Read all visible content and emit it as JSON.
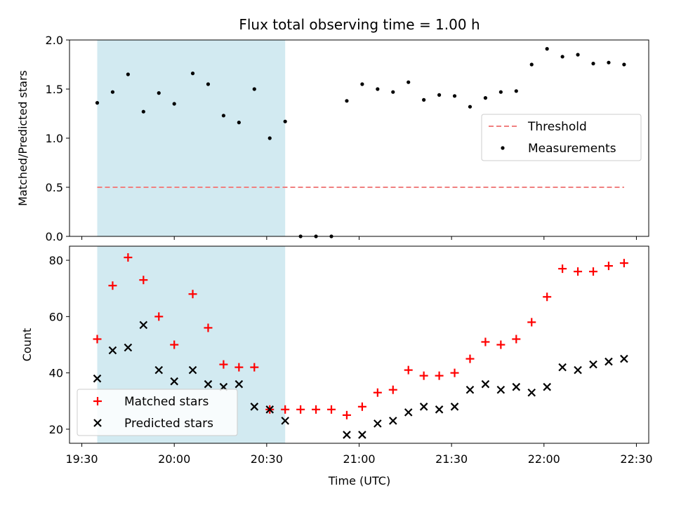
{
  "chart_data": [
    {
      "type": "scatter",
      "title": "Flux total observing time = 1.00 h",
      "xlabel": "",
      "ylabel": "Matched/Predicted stars",
      "ylim": [
        0,
        2.0
      ],
      "yticks": [
        "0.0",
        "0.5",
        "1.0",
        "1.5",
        "2.0"
      ],
      "shaded_span": [
        "19:35",
        "20:36"
      ],
      "threshold": {
        "name": "Threshold",
        "value": 0.5,
        "x_range": [
          "19:35",
          "22:26"
        ],
        "color": "#f08080"
      },
      "legend": {
        "placement": "center-right",
        "entries": [
          "Threshold",
          "Measurements"
        ]
      },
      "series": [
        {
          "name": "Measurements",
          "color": "#000000",
          "points": [
            [
              "19:35",
              1.36
            ],
            [
              "19:40",
              1.47
            ],
            [
              "19:45",
              1.65
            ],
            [
              "19:50",
              1.27
            ],
            [
              "19:55",
              1.46
            ],
            [
              "20:00",
              1.35
            ],
            [
              "20:06",
              1.66
            ],
            [
              "20:11",
              1.55
            ],
            [
              "20:16",
              1.23
            ],
            [
              "20:21",
              1.16
            ],
            [
              "20:26",
              1.5
            ],
            [
              "20:31",
              1.0
            ],
            [
              "20:36",
              1.17
            ],
            [
              "20:41",
              0.0
            ],
            [
              "20:46",
              0.0
            ],
            [
              "20:51",
              0.0
            ],
            [
              "20:56",
              1.38
            ],
            [
              "21:01",
              1.55
            ],
            [
              "21:06",
              1.5
            ],
            [
              "21:11",
              1.47
            ],
            [
              "21:16",
              1.57
            ],
            [
              "21:21",
              1.39
            ],
            [
              "21:26",
              1.44
            ],
            [
              "21:31",
              1.43
            ],
            [
              "21:36",
              1.32
            ],
            [
              "21:41",
              1.41
            ],
            [
              "21:46",
              1.47
            ],
            [
              "21:51",
              1.48
            ],
            [
              "21:56",
              1.75
            ],
            [
              "22:01",
              1.91
            ],
            [
              "22:06",
              1.83
            ],
            [
              "22:11",
              1.85
            ],
            [
              "22:16",
              1.76
            ],
            [
              "22:21",
              1.77
            ],
            [
              "22:26",
              1.75
            ]
          ]
        }
      ]
    },
    {
      "type": "scatter",
      "title": "",
      "xlabel": "Time (UTC)",
      "ylabel": "Count",
      "ylim": [
        15,
        85
      ],
      "yticks": [
        "20",
        "40",
        "60",
        "80"
      ],
      "xticks": [
        "19:30",
        "20:00",
        "20:30",
        "21:00",
        "21:30",
        "22:00",
        "22:30"
      ],
      "xlim": [
        "19:26",
        "22:34"
      ],
      "shaded_span": [
        "19:35",
        "20:36"
      ],
      "legend": {
        "placement": "lower-left",
        "entries": [
          "Matched stars",
          "Predicted stars"
        ]
      },
      "series": [
        {
          "name": "Matched stars",
          "marker": "plus",
          "color": "#ff0000",
          "points": [
            [
              "19:35",
              52
            ],
            [
              "19:40",
              71
            ],
            [
              "19:45",
              81
            ],
            [
              "19:50",
              73
            ],
            [
              "19:55",
              60
            ],
            [
              "20:00",
              50
            ],
            [
              "20:06",
              68
            ],
            [
              "20:11",
              56
            ],
            [
              "20:16",
              43
            ],
            [
              "20:21",
              42
            ],
            [
              "20:26",
              42
            ],
            [
              "20:31",
              27
            ],
            [
              "20:36",
              27
            ],
            [
              "20:41",
              27
            ],
            [
              "20:46",
              27
            ],
            [
              "20:51",
              27
            ],
            [
              "20:56",
              25
            ],
            [
              "21:01",
              28
            ],
            [
              "21:06",
              33
            ],
            [
              "21:11",
              34
            ],
            [
              "21:16",
              41
            ],
            [
              "21:21",
              39
            ],
            [
              "21:26",
              39
            ],
            [
              "21:31",
              40
            ],
            [
              "21:36",
              45
            ],
            [
              "21:41",
              51
            ],
            [
              "21:46",
              50
            ],
            [
              "21:51",
              52
            ],
            [
              "21:56",
              58
            ],
            [
              "22:01",
              67
            ],
            [
              "22:06",
              77
            ],
            [
              "22:11",
              76
            ],
            [
              "22:16",
              76
            ],
            [
              "22:21",
              78
            ],
            [
              "22:26",
              79
            ]
          ]
        },
        {
          "name": "Predicted stars",
          "marker": "x",
          "color": "#000000",
          "points": [
            [
              "19:35",
              38
            ],
            [
              "19:40",
              48
            ],
            [
              "19:45",
              49
            ],
            [
              "19:50",
              57
            ],
            [
              "19:55",
              41
            ],
            [
              "20:00",
              37
            ],
            [
              "20:06",
              41
            ],
            [
              "20:11",
              36
            ],
            [
              "20:16",
              35
            ],
            [
              "20:21",
              36
            ],
            [
              "20:26",
              28
            ],
            [
              "20:31",
              27
            ],
            [
              "20:36",
              23
            ],
            [
              "20:56",
              18
            ],
            [
              "21:01",
              18
            ],
            [
              "21:06",
              22
            ],
            [
              "21:11",
              23
            ],
            [
              "21:16",
              26
            ],
            [
              "21:21",
              28
            ],
            [
              "21:26",
              27
            ],
            [
              "21:31",
              28
            ],
            [
              "21:36",
              34
            ],
            [
              "21:41",
              36
            ],
            [
              "21:46",
              34
            ],
            [
              "21:51",
              35
            ],
            [
              "21:56",
              33
            ],
            [
              "22:01",
              35
            ],
            [
              "22:06",
              42
            ],
            [
              "22:11",
              41
            ],
            [
              "22:16",
              43
            ],
            [
              "22:21",
              44
            ],
            [
              "22:26",
              45
            ]
          ]
        }
      ]
    }
  ]
}
